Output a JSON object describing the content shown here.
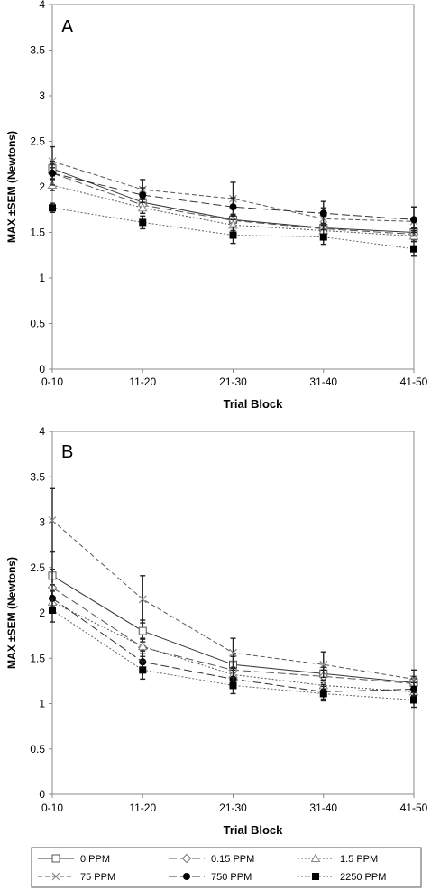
{
  "chart_data": [
    {
      "type": "line",
      "panel_label": "A",
      "ylabel": "MAX ±SEM (Newtons)",
      "xlabel": "Trial Block",
      "categories": [
        "0-10",
        "11-20",
        "21-30",
        "31-40",
        "41-50"
      ],
      "ylim": [
        0,
        4
      ],
      "yticks": [
        "0",
        "0.5",
        "1",
        "1.5",
        "2",
        "2.5",
        "3",
        "3.5",
        "4"
      ],
      "grid": false,
      "series": [
        {
          "name": "0 PPM",
          "values": [
            2.2,
            1.83,
            1.64,
            1.55,
            1.5
          ],
          "sem": [
            0.05,
            0.05,
            0.06,
            0.05,
            0.05
          ]
        },
        {
          "name": "0.15 PPM",
          "values": [
            2.15,
            1.8,
            1.63,
            1.54,
            1.48
          ],
          "sem": [
            0.06,
            0.06,
            0.06,
            0.06,
            0.06
          ]
        },
        {
          "name": "1.5 PPM",
          "values": [
            2.02,
            1.77,
            1.58,
            1.52,
            1.46
          ],
          "sem": [
            0.06,
            0.06,
            0.06,
            0.06,
            0.06
          ]
        },
        {
          "name": "75 PPM",
          "values": [
            2.28,
            1.97,
            1.87,
            1.65,
            1.62
          ],
          "sem": [
            0.16,
            0.11,
            0.18,
            0.12,
            0.16
          ]
        },
        {
          "name": "750 PPM",
          "values": [
            2.15,
            1.91,
            1.78,
            1.71,
            1.64
          ],
          "sem": [
            0.13,
            0.08,
            0.1,
            0.13,
            0.14
          ]
        },
        {
          "name": "2250 PPM",
          "values": [
            1.77,
            1.61,
            1.47,
            1.45,
            1.32
          ],
          "sem": [
            0.05,
            0.07,
            0.09,
            0.08,
            0.08
          ]
        }
      ]
    },
    {
      "type": "line",
      "panel_label": "B",
      "ylabel": "MAX ±SEM (Newtons)",
      "xlabel": "Trial Block",
      "categories": [
        "0-10",
        "11-20",
        "21-30",
        "31-40",
        "41-50"
      ],
      "ylim": [
        0,
        4
      ],
      "yticks": [
        "0",
        "0.5",
        "1",
        "1.5",
        "2",
        "2.5",
        "3",
        "3.5",
        "4"
      ],
      "grid": false,
      "series": [
        {
          "name": "0 PPM",
          "values": [
            2.41,
            1.8,
            1.43,
            1.33,
            1.23
          ],
          "sem": [
            0.27,
            0.12,
            0.09,
            0.07,
            0.07
          ]
        },
        {
          "name": "0.15 PPM",
          "values": [
            2.28,
            1.62,
            1.37,
            1.3,
            1.22
          ],
          "sem": [
            0.2,
            0.1,
            0.08,
            0.07,
            0.06
          ]
        },
        {
          "name": "1.5 PPM",
          "values": [
            2.12,
            1.63,
            1.32,
            1.2,
            1.13
          ],
          "sem": [
            0.12,
            0.08,
            0.07,
            0.06,
            0.05
          ]
        },
        {
          "name": "75 PPM",
          "values": [
            3.02,
            2.15,
            1.56,
            1.43,
            1.27
          ],
          "sem": [
            0.35,
            0.26,
            0.16,
            0.14,
            0.1
          ]
        },
        {
          "name": "750 PPM",
          "values": [
            2.16,
            1.46,
            1.27,
            1.13,
            1.16
          ],
          "sem": [
            0.15,
            0.12,
            0.1,
            0.08,
            0.07
          ]
        },
        {
          "name": "2250 PPM",
          "values": [
            2.03,
            1.37,
            1.2,
            1.11,
            1.04
          ],
          "sem": [
            0.13,
            0.1,
            0.09,
            0.08,
            0.08
          ]
        }
      ]
    }
  ],
  "legend": {
    "placement": "bottom",
    "items": [
      {
        "label": "0 PPM",
        "marker": "square-open",
        "dash": "solid"
      },
      {
        "label": "0.15 PPM",
        "marker": "diamond-open",
        "dash": "long-dash"
      },
      {
        "label": "1.5 PPM",
        "marker": "triangle-open",
        "dash": "dotted"
      },
      {
        "label": "75 PPM",
        "marker": "x",
        "dash": "dash"
      },
      {
        "label": "750 PPM",
        "marker": "circle-filled",
        "dash": "long-dash"
      },
      {
        "label": "2250 PPM",
        "marker": "square-filled",
        "dash": "dotted"
      }
    ]
  }
}
